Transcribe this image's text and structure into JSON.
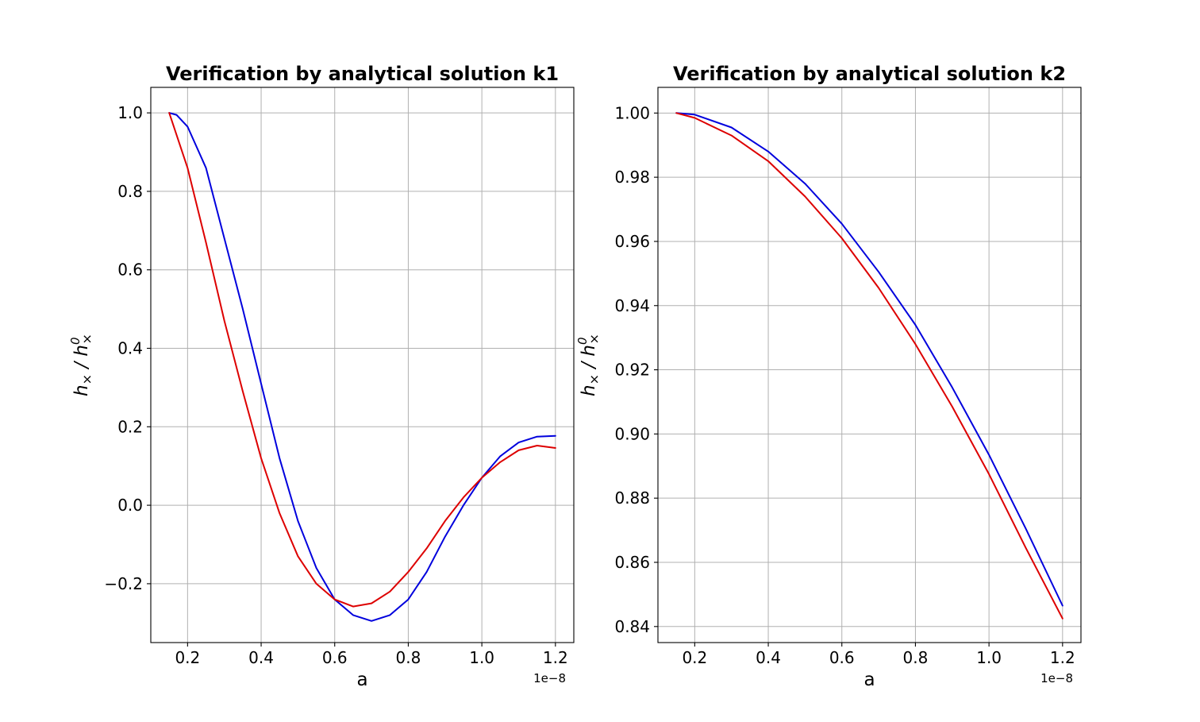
{
  "chart_data": [
    {
      "type": "line",
      "title": "Verification by analytical solution k1",
      "xlabel": "a",
      "ylabel_base": "h",
      "ylabel_sub": "×",
      "ylabel_sep": " / ",
      "ylabel_sup": "0",
      "x_offset_label": "1e−8",
      "xlim": [
        0.1,
        1.25
      ],
      "ylim": [
        -0.35,
        1.065
      ],
      "xticks": [
        0.2,
        0.4,
        0.6,
        0.8,
        1.0,
        1.2
      ],
      "xtick_labels": [
        "0.2",
        "0.4",
        "0.6",
        "0.8",
        "1.0",
        "1.2"
      ],
      "yticks": [
        -0.2,
        0.0,
        0.2,
        0.4,
        0.6,
        0.8,
        1.0
      ],
      "ytick_labels": [
        "−0.2",
        "0.0",
        "0.2",
        "0.4",
        "0.6",
        "0.8",
        "1.0"
      ],
      "grid": true,
      "series": [
        {
          "color": "#0000dd",
          "x": [
            0.15,
            0.17,
            0.2,
            0.25,
            0.3,
            0.35,
            0.4,
            0.45,
            0.5,
            0.55,
            0.6,
            0.65,
            0.7,
            0.75,
            0.8,
            0.85,
            0.9,
            0.95,
            1.0,
            1.05,
            1.1,
            1.15,
            1.2
          ],
          "y": [
            1.0,
            0.995,
            0.965,
            0.86,
            0.68,
            0.5,
            0.31,
            0.12,
            -0.04,
            -0.16,
            -0.24,
            -0.28,
            -0.295,
            -0.28,
            -0.24,
            -0.17,
            -0.08,
            0.0,
            0.07,
            0.125,
            0.16,
            0.175,
            0.177
          ]
        },
        {
          "color": "#dd0000",
          "x": [
            0.15,
            0.2,
            0.25,
            0.3,
            0.35,
            0.4,
            0.45,
            0.5,
            0.55,
            0.6,
            0.65,
            0.7,
            0.75,
            0.8,
            0.85,
            0.9,
            0.95,
            1.0,
            1.05,
            1.1,
            1.15,
            1.2
          ],
          "y": [
            1.0,
            0.86,
            0.67,
            0.47,
            0.29,
            0.12,
            -0.02,
            -0.13,
            -0.2,
            -0.24,
            -0.258,
            -0.25,
            -0.22,
            -0.17,
            -0.11,
            -0.04,
            0.02,
            0.07,
            0.11,
            0.14,
            0.152,
            0.146
          ]
        }
      ]
    },
    {
      "type": "line",
      "title": "Verification by analytical solution k2",
      "xlabel": "a",
      "ylabel_base": "h",
      "ylabel_sub": "×",
      "ylabel_sep": " / ",
      "ylabel_sup": "0",
      "x_offset_label": "1e−8",
      "xlim": [
        0.1,
        1.25
      ],
      "ylim": [
        0.835,
        1.008
      ],
      "xticks": [
        0.2,
        0.4,
        0.6,
        0.8,
        1.0,
        1.2
      ],
      "xtick_labels": [
        "0.2",
        "0.4",
        "0.6",
        "0.8",
        "1.0",
        "1.2"
      ],
      "yticks": [
        0.84,
        0.86,
        0.88,
        0.9,
        0.92,
        0.94,
        0.96,
        0.98,
        1.0
      ],
      "ytick_labels": [
        "0.84",
        "0.86",
        "0.88",
        "0.90",
        "0.92",
        "0.94",
        "0.96",
        "0.98",
        "1.00"
      ],
      "grid": true,
      "series": [
        {
          "color": "#0000dd",
          "x": [
            0.15,
            0.2,
            0.3,
            0.4,
            0.5,
            0.6,
            0.7,
            0.8,
            0.9,
            1.0,
            1.1,
            1.2
          ],
          "y": [
            1.0,
            0.9995,
            0.9955,
            0.988,
            0.978,
            0.9655,
            0.9505,
            0.934,
            0.9145,
            0.8935,
            0.8705,
            0.8465
          ]
        },
        {
          "color": "#dd0000",
          "x": [
            0.15,
            0.2,
            0.3,
            0.4,
            0.5,
            0.6,
            0.7,
            0.8,
            0.9,
            1.0,
            1.1,
            1.2
          ],
          "y": [
            1.0,
            0.9985,
            0.993,
            0.985,
            0.974,
            0.961,
            0.9455,
            0.928,
            0.9085,
            0.8875,
            0.8645,
            0.8425
          ]
        }
      ]
    }
  ]
}
